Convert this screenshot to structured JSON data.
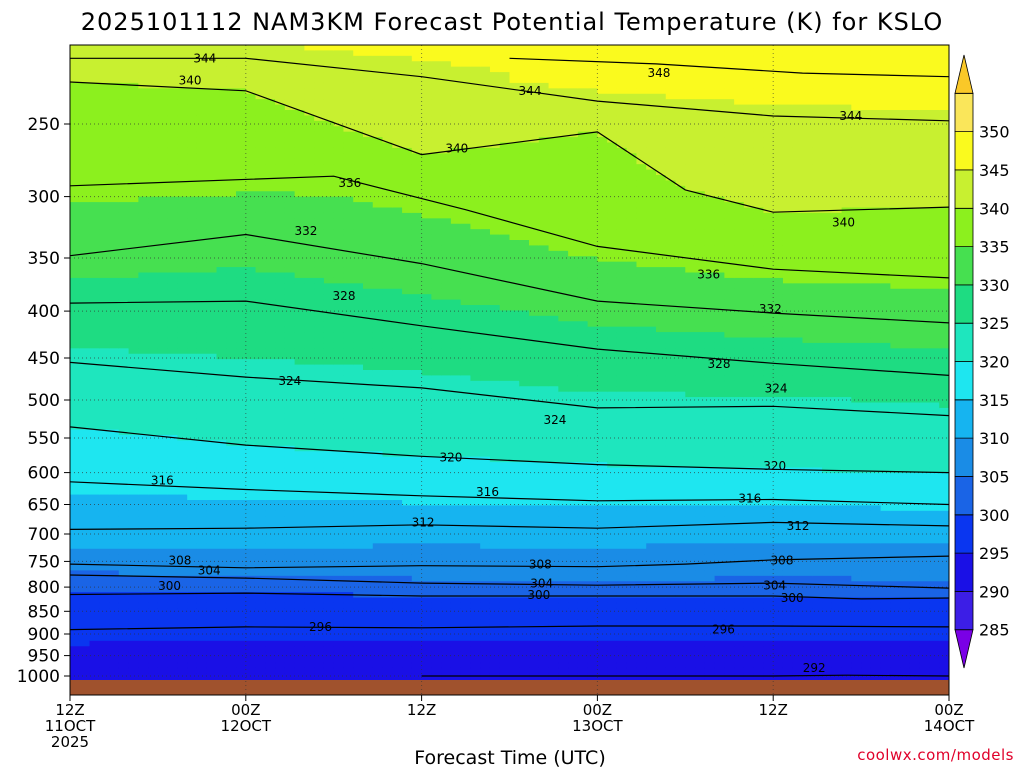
{
  "chart_data": {
    "type": "contour",
    "title": "2025101112 NAM3KM Forecast Potential Temperature (K) for KSLO",
    "xlabel": "Forecast Time (UTC)",
    "ylabel": "",
    "credit": "coolwx.com/models",
    "x_ticks": [
      {
        "hours": 0,
        "line1": "12Z",
        "line2": "11OCT",
        "line3": "2025"
      },
      {
        "hours": 12,
        "line1": "00Z",
        "line2": "12OCT",
        "line3": ""
      },
      {
        "hours": 24,
        "line1": "12Z",
        "line2": "",
        "line3": ""
      },
      {
        "hours": 36,
        "line1": "00Z",
        "line2": "13OCT",
        "line3": ""
      },
      {
        "hours": 48,
        "line1": "12Z",
        "line2": "",
        "line3": ""
      },
      {
        "hours": 60,
        "line1": "00Z",
        "line2": "14OCT",
        "line3": ""
      }
    ],
    "xlim_hours": [
      0,
      60
    ],
    "y_axis": "pressure (hPa), log scale, inverted",
    "y_ticks": [
      250,
      300,
      350,
      400,
      450,
      500,
      550,
      600,
      650,
      700,
      750,
      800,
      850,
      900,
      950,
      1000
    ],
    "ylim": [
      1000,
      200
    ],
    "colorbar": {
      "levels": [
        285,
        290,
        295,
        300,
        305,
        310,
        315,
        320,
        325,
        330,
        335,
        340,
        345,
        350
      ],
      "colors": [
        "#7a00e6",
        "#3c1ee6",
        "#1a10e6",
        "#0a36f0",
        "#1a64e6",
        "#1a8ce6",
        "#16b4f0",
        "#1ee6f0",
        "#1ee6be",
        "#1edc82",
        "#46e050",
        "#8cf01e",
        "#c8f030",
        "#fafa1e",
        "#fae65a",
        "#fac828"
      ],
      "extend": "both"
    },
    "ground_color": "#a0522d",
    "ground_pressure": 1010,
    "series": [
      {
        "level": 292,
        "points": [
          [
            24,
            1000
          ],
          [
            36,
            1000
          ],
          [
            48,
            1000
          ],
          [
            53,
            998
          ],
          [
            60,
            1000
          ]
        ]
      },
      {
        "level": 296,
        "points": [
          [
            0,
            890
          ],
          [
            12,
            884
          ],
          [
            24,
            886
          ],
          [
            36,
            882
          ],
          [
            48,
            882
          ],
          [
            60,
            884
          ]
        ]
      },
      {
        "level": 300,
        "points": [
          [
            0,
            815
          ],
          [
            12,
            812
          ],
          [
            24,
            818
          ],
          [
            36,
            818
          ],
          [
            48,
            818
          ],
          [
            54,
            824
          ],
          [
            60,
            822
          ]
        ]
      },
      {
        "level": 304,
        "points": [
          [
            0,
            776
          ],
          [
            12,
            782
          ],
          [
            24,
            792
          ],
          [
            36,
            796
          ],
          [
            48,
            792
          ],
          [
            60,
            802
          ]
        ]
      },
      {
        "level": 308,
        "points": [
          [
            0,
            755
          ],
          [
            12,
            762
          ],
          [
            24,
            758
          ],
          [
            36,
            760
          ],
          [
            42,
            755
          ],
          [
            48,
            747
          ],
          [
            60,
            740
          ]
        ]
      },
      {
        "level": 312,
        "points": [
          [
            0,
            692
          ],
          [
            12,
            690
          ],
          [
            24,
            684
          ],
          [
            36,
            690
          ],
          [
            48,
            680
          ],
          [
            60,
            686
          ]
        ]
      },
      {
        "level": 316,
        "points": [
          [
            0,
            614
          ],
          [
            12,
            626
          ],
          [
            24,
            636
          ],
          [
            36,
            644
          ],
          [
            48,
            642
          ],
          [
            60,
            650
          ]
        ]
      },
      {
        "level": 320,
        "points": [
          [
            0,
            535
          ],
          [
            12,
            560
          ],
          [
            24,
            576
          ],
          [
            36,
            588
          ],
          [
            48,
            595
          ],
          [
            60,
            600
          ]
        ]
      },
      {
        "level": 324,
        "points": [
          [
            0,
            455
          ],
          [
            12,
            472
          ],
          [
            24,
            485
          ],
          [
            36,
            510
          ],
          [
            48,
            508
          ],
          [
            60,
            520
          ]
        ]
      },
      {
        "level": 328,
        "points": [
          [
            0,
            392
          ],
          [
            12,
            390
          ],
          [
            24,
            415
          ],
          [
            36,
            440
          ],
          [
            48,
            456
          ],
          [
            60,
            470
          ]
        ]
      },
      {
        "level": 332,
        "points": [
          [
            0,
            348
          ],
          [
            12,
            330
          ],
          [
            24,
            355
          ],
          [
            36,
            390
          ],
          [
            48,
            402
          ],
          [
            60,
            412
          ]
        ]
      },
      {
        "level": 336,
        "points": [
          [
            0,
            292
          ],
          [
            18,
            285
          ],
          [
            27,
            310
          ],
          [
            36,
            340
          ],
          [
            48,
            360
          ],
          [
            60,
            368
          ]
        ]
      },
      {
        "level": 340,
        "points": [
          [
            0,
            225
          ],
          [
            12,
            230
          ],
          [
            24,
            270
          ],
          [
            36,
            255
          ],
          [
            42,
            295
          ],
          [
            48,
            312
          ],
          [
            60,
            308
          ]
        ]
      },
      {
        "level": 344,
        "points": [
          [
            0,
            212
          ],
          [
            12,
            212
          ],
          [
            24,
            222
          ],
          [
            36,
            236
          ],
          [
            48,
            245
          ],
          [
            60,
            248
          ]
        ]
      },
      {
        "level": 348,
        "points": [
          [
            30,
            212
          ],
          [
            40,
            215
          ],
          [
            50,
            220
          ],
          [
            60,
            222
          ]
        ]
      }
    ],
    "contour_labels": [
      {
        "text": "344",
        "hours": 9.2,
        "p": 212
      },
      {
        "text": "340",
        "hours": 8.2,
        "p": 224
      },
      {
        "text": "348",
        "hours": 40.2,
        "p": 220
      },
      {
        "text": "344",
        "hours": 31.4,
        "p": 230
      },
      {
        "text": "344",
        "hours": 53.3,
        "p": 245
      },
      {
        "text": "340",
        "hours": 26.4,
        "p": 266
      },
      {
        "text": "336",
        "hours": 19.1,
        "p": 290
      },
      {
        "text": "340",
        "hours": 52.8,
        "p": 320
      },
      {
        "text": "332",
        "hours": 16.1,
        "p": 327
      },
      {
        "text": "336",
        "hours": 43.6,
        "p": 365
      },
      {
        "text": "328",
        "hours": 18.7,
        "p": 385
      },
      {
        "text": "332",
        "hours": 47.8,
        "p": 398
      },
      {
        "text": "328",
        "hours": 44.3,
        "p": 457
      },
      {
        "text": "324",
        "hours": 15.0,
        "p": 477
      },
      {
        "text": "324",
        "hours": 48.2,
        "p": 486
      },
      {
        "text": "324",
        "hours": 33.1,
        "p": 526
      },
      {
        "text": "320",
        "hours": 26.0,
        "p": 578
      },
      {
        "text": "320",
        "hours": 48.1,
        "p": 590
      },
      {
        "text": "316",
        "hours": 6.3,
        "p": 612
      },
      {
        "text": "316",
        "hours": 28.5,
        "p": 630
      },
      {
        "text": "316",
        "hours": 46.4,
        "p": 640
      },
      {
        "text": "312",
        "hours": 24.1,
        "p": 680
      },
      {
        "text": "312",
        "hours": 49.7,
        "p": 686
      },
      {
        "text": "308",
        "hours": 7.5,
        "p": 748
      },
      {
        "text": "308",
        "hours": 32.1,
        "p": 756
      },
      {
        "text": "308",
        "hours": 48.6,
        "p": 748
      },
      {
        "text": "304",
        "hours": 9.5,
        "p": 767
      },
      {
        "text": "304",
        "hours": 32.2,
        "p": 793
      },
      {
        "text": "304",
        "hours": 48.1,
        "p": 797
      },
      {
        "text": "300",
        "hours": 6.8,
        "p": 798
      },
      {
        "text": "300",
        "hours": 32.0,
        "p": 816
      },
      {
        "text": "300",
        "hours": 49.3,
        "p": 822
      },
      {
        "text": "296",
        "hours": 17.1,
        "p": 884
      },
      {
        "text": "296",
        "hours": 44.6,
        "p": 890
      },
      {
        "text": "292",
        "hours": 50.8,
        "p": 980
      }
    ]
  }
}
